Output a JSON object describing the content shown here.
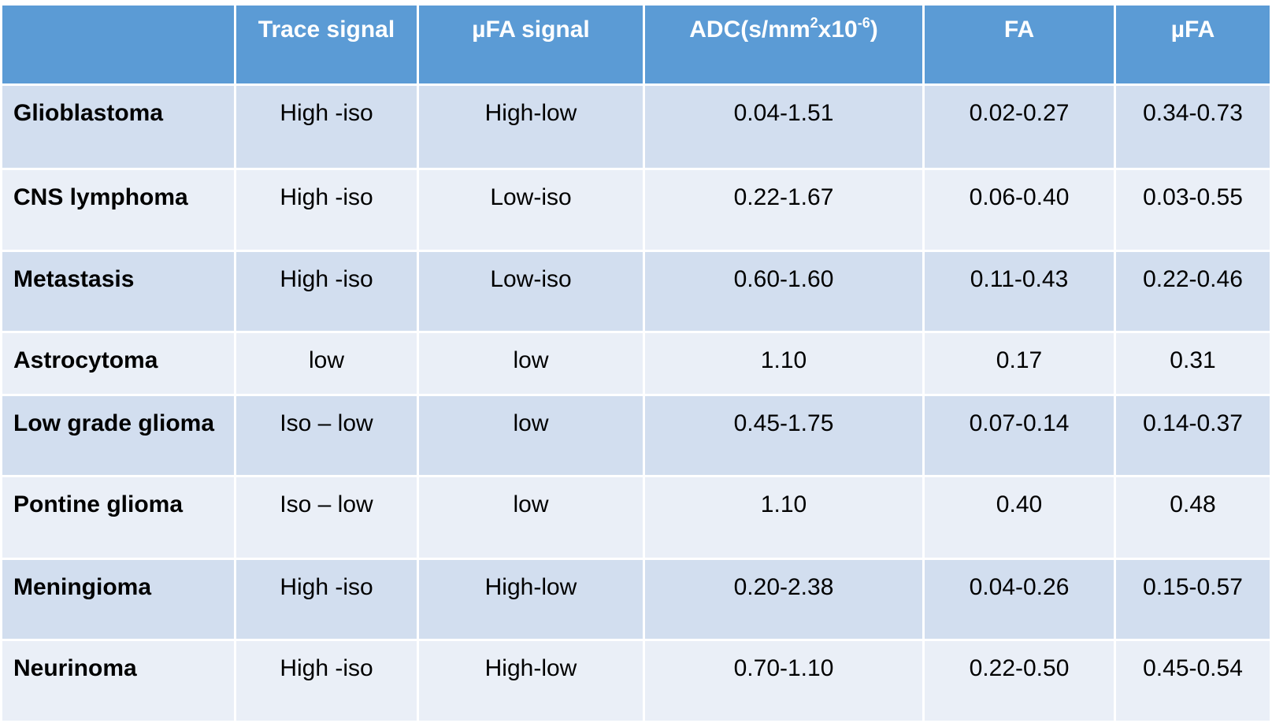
{
  "table": {
    "columns": [
      "Trace signal",
      "µFA signal",
      [
        "ADC(s/mm",
        "2",
        "x10",
        "-6",
        ")"
      ],
      "FA",
      "µFA"
    ],
    "rows": [
      [
        "Glioblastoma",
        "High -iso",
        "High-low",
        "0.04-1.51",
        "0.02-0.27",
        "0.34-0.73"
      ],
      [
        "CNS lymphoma",
        "High -iso",
        "Low-iso",
        "0.22-1.67",
        "0.06-0.40",
        "0.03-0.55"
      ],
      [
        "Metastasis",
        "High -iso",
        "Low-iso",
        "0.60-1.60",
        "0.11-0.43",
        "0.22-0.46"
      ],
      [
        "Astrocytoma",
        "low",
        "low",
        "1.10",
        "0.17",
        "0.31"
      ],
      [
        "Low grade glioma",
        "Iso – low",
        "low",
        "0.45-1.75",
        "0.07-0.14",
        "0.14-0.37"
      ],
      [
        "Pontine glioma",
        "Iso – low",
        "low",
        "1.10",
        "0.40",
        "0.48"
      ],
      [
        "Meningioma",
        "High -iso",
        "High-low",
        "0.20-2.38",
        "0.04-0.26",
        "0.15-0.57"
      ],
      [
        "Neurinoma",
        "High -iso",
        "High-low",
        "0.70-1.10",
        "0.22-0.50",
        "0.45-0.54"
      ]
    ]
  }
}
